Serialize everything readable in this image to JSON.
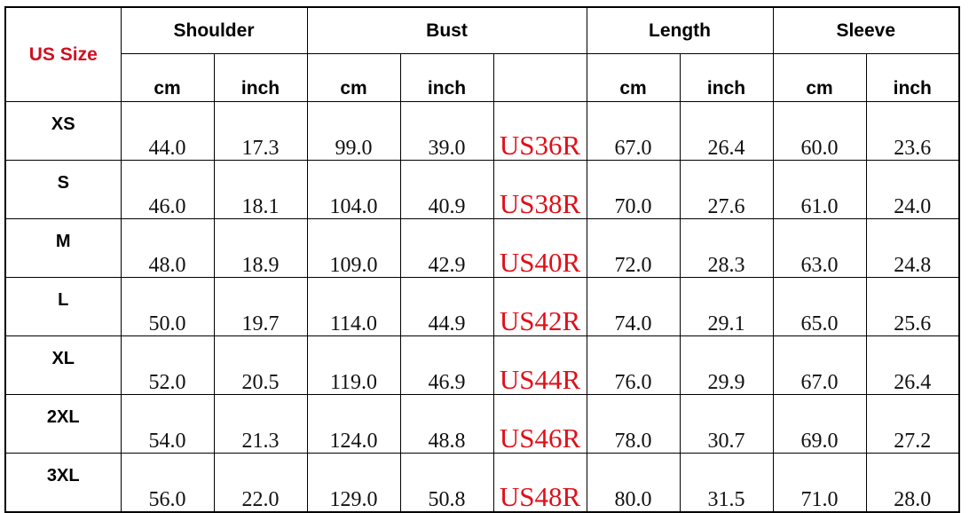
{
  "header": {
    "us_size": "US Size",
    "groups": [
      "Shoulder",
      "Bust",
      "Length",
      "Sleeve"
    ],
    "units": [
      "cm",
      "inch",
      "cm",
      "inch",
      "",
      "cm",
      "inch",
      "cm",
      "inch"
    ]
  },
  "rows": [
    {
      "size": "XS",
      "cells": [
        "44.0",
        "17.3",
        "99.0",
        "39.0",
        "US36R",
        "67.0",
        "26.4",
        "60.0",
        "23.6"
      ]
    },
    {
      "size": "S",
      "cells": [
        "46.0",
        "18.1",
        "104.0",
        "40.9",
        "US38R",
        "70.0",
        "27.6",
        "61.0",
        "24.0"
      ]
    },
    {
      "size": "M",
      "cells": [
        "48.0",
        "18.9",
        "109.0",
        "42.9",
        "US40R",
        "72.0",
        "28.3",
        "63.0",
        "24.8"
      ]
    },
    {
      "size": "L",
      "cells": [
        "50.0",
        "19.7",
        "114.0",
        "44.9",
        "US42R",
        "74.0",
        "29.1",
        "65.0",
        "25.6"
      ]
    },
    {
      "size": "XL",
      "cells": [
        "52.0",
        "20.5",
        "119.0",
        "46.9",
        "US44R",
        "76.0",
        "29.9",
        "67.0",
        "26.4"
      ]
    },
    {
      "size": "2XL",
      "cells": [
        "54.0",
        "21.3",
        "124.0",
        "48.8",
        "US46R",
        "78.0",
        "30.7",
        "69.0",
        "27.2"
      ]
    },
    {
      "size": "3XL",
      "cells": [
        "56.0",
        "22.0",
        "129.0",
        "50.8",
        "US48R",
        "80.0",
        "31.5",
        "71.0",
        "28.0"
      ]
    }
  ],
  "colors": {
    "us_size": "#d01020",
    "us_code": "#e0101a"
  }
}
